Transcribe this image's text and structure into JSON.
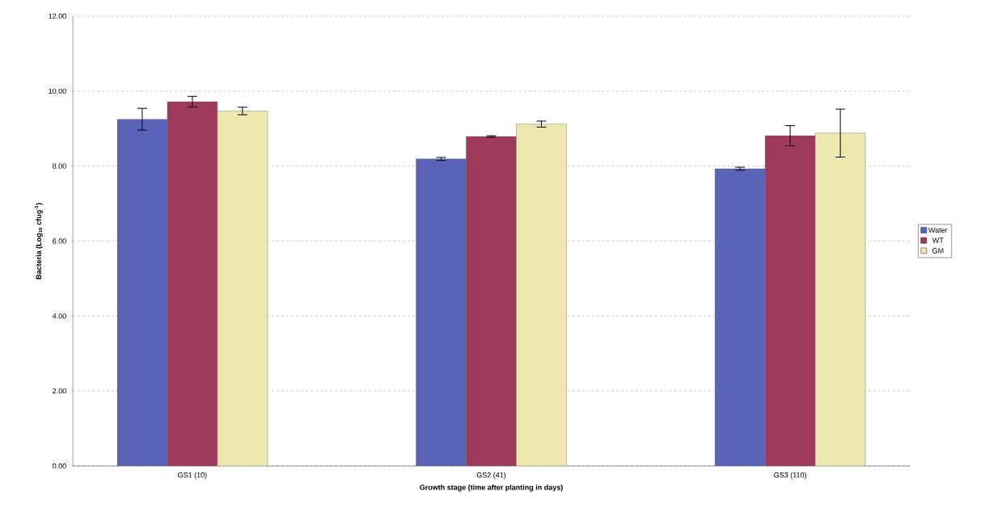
{
  "chart_data": {
    "type": "bar",
    "xlabel": "Growth stage (time after planting in days)",
    "ylabel": "Bacteria (Log$_{10}$ cfug$^{-1}$)",
    "categories": [
      "GS1 (10)",
      "GS2 (41)",
      "GS3 (110)"
    ],
    "series": [
      {
        "name": "Water",
        "color": "#5b63b8",
        "values": [
          9.25,
          8.19,
          7.93
        ],
        "errors": [
          0.29,
          0.04,
          0.04
        ]
      },
      {
        "name": "WT",
        "color": "#a03a5c",
        "values": [
          9.72,
          8.79,
          8.81
        ],
        "errors": [
          0.14,
          0.02,
          0.27
        ]
      },
      {
        "name": "GM",
        "color": "#ece8b0",
        "values": [
          9.47,
          9.12,
          8.88
        ],
        "errors": [
          0.1,
          0.08,
          0.64
        ]
      }
    ],
    "ylim": [
      0,
      12
    ],
    "yticks": [
      {
        "value": 0,
        "label": "0.00"
      },
      {
        "value": 2,
        "label": "2.00"
      },
      {
        "value": 4,
        "label": "4.00"
      },
      {
        "value": 6,
        "label": "6.00"
      },
      {
        "value": 8,
        "label": "8.00"
      },
      {
        "value": 10,
        "label": "10.00"
      },
      {
        "value": 12,
        "label": "12.00"
      }
    ],
    "grid": "y",
    "legend": "right"
  }
}
